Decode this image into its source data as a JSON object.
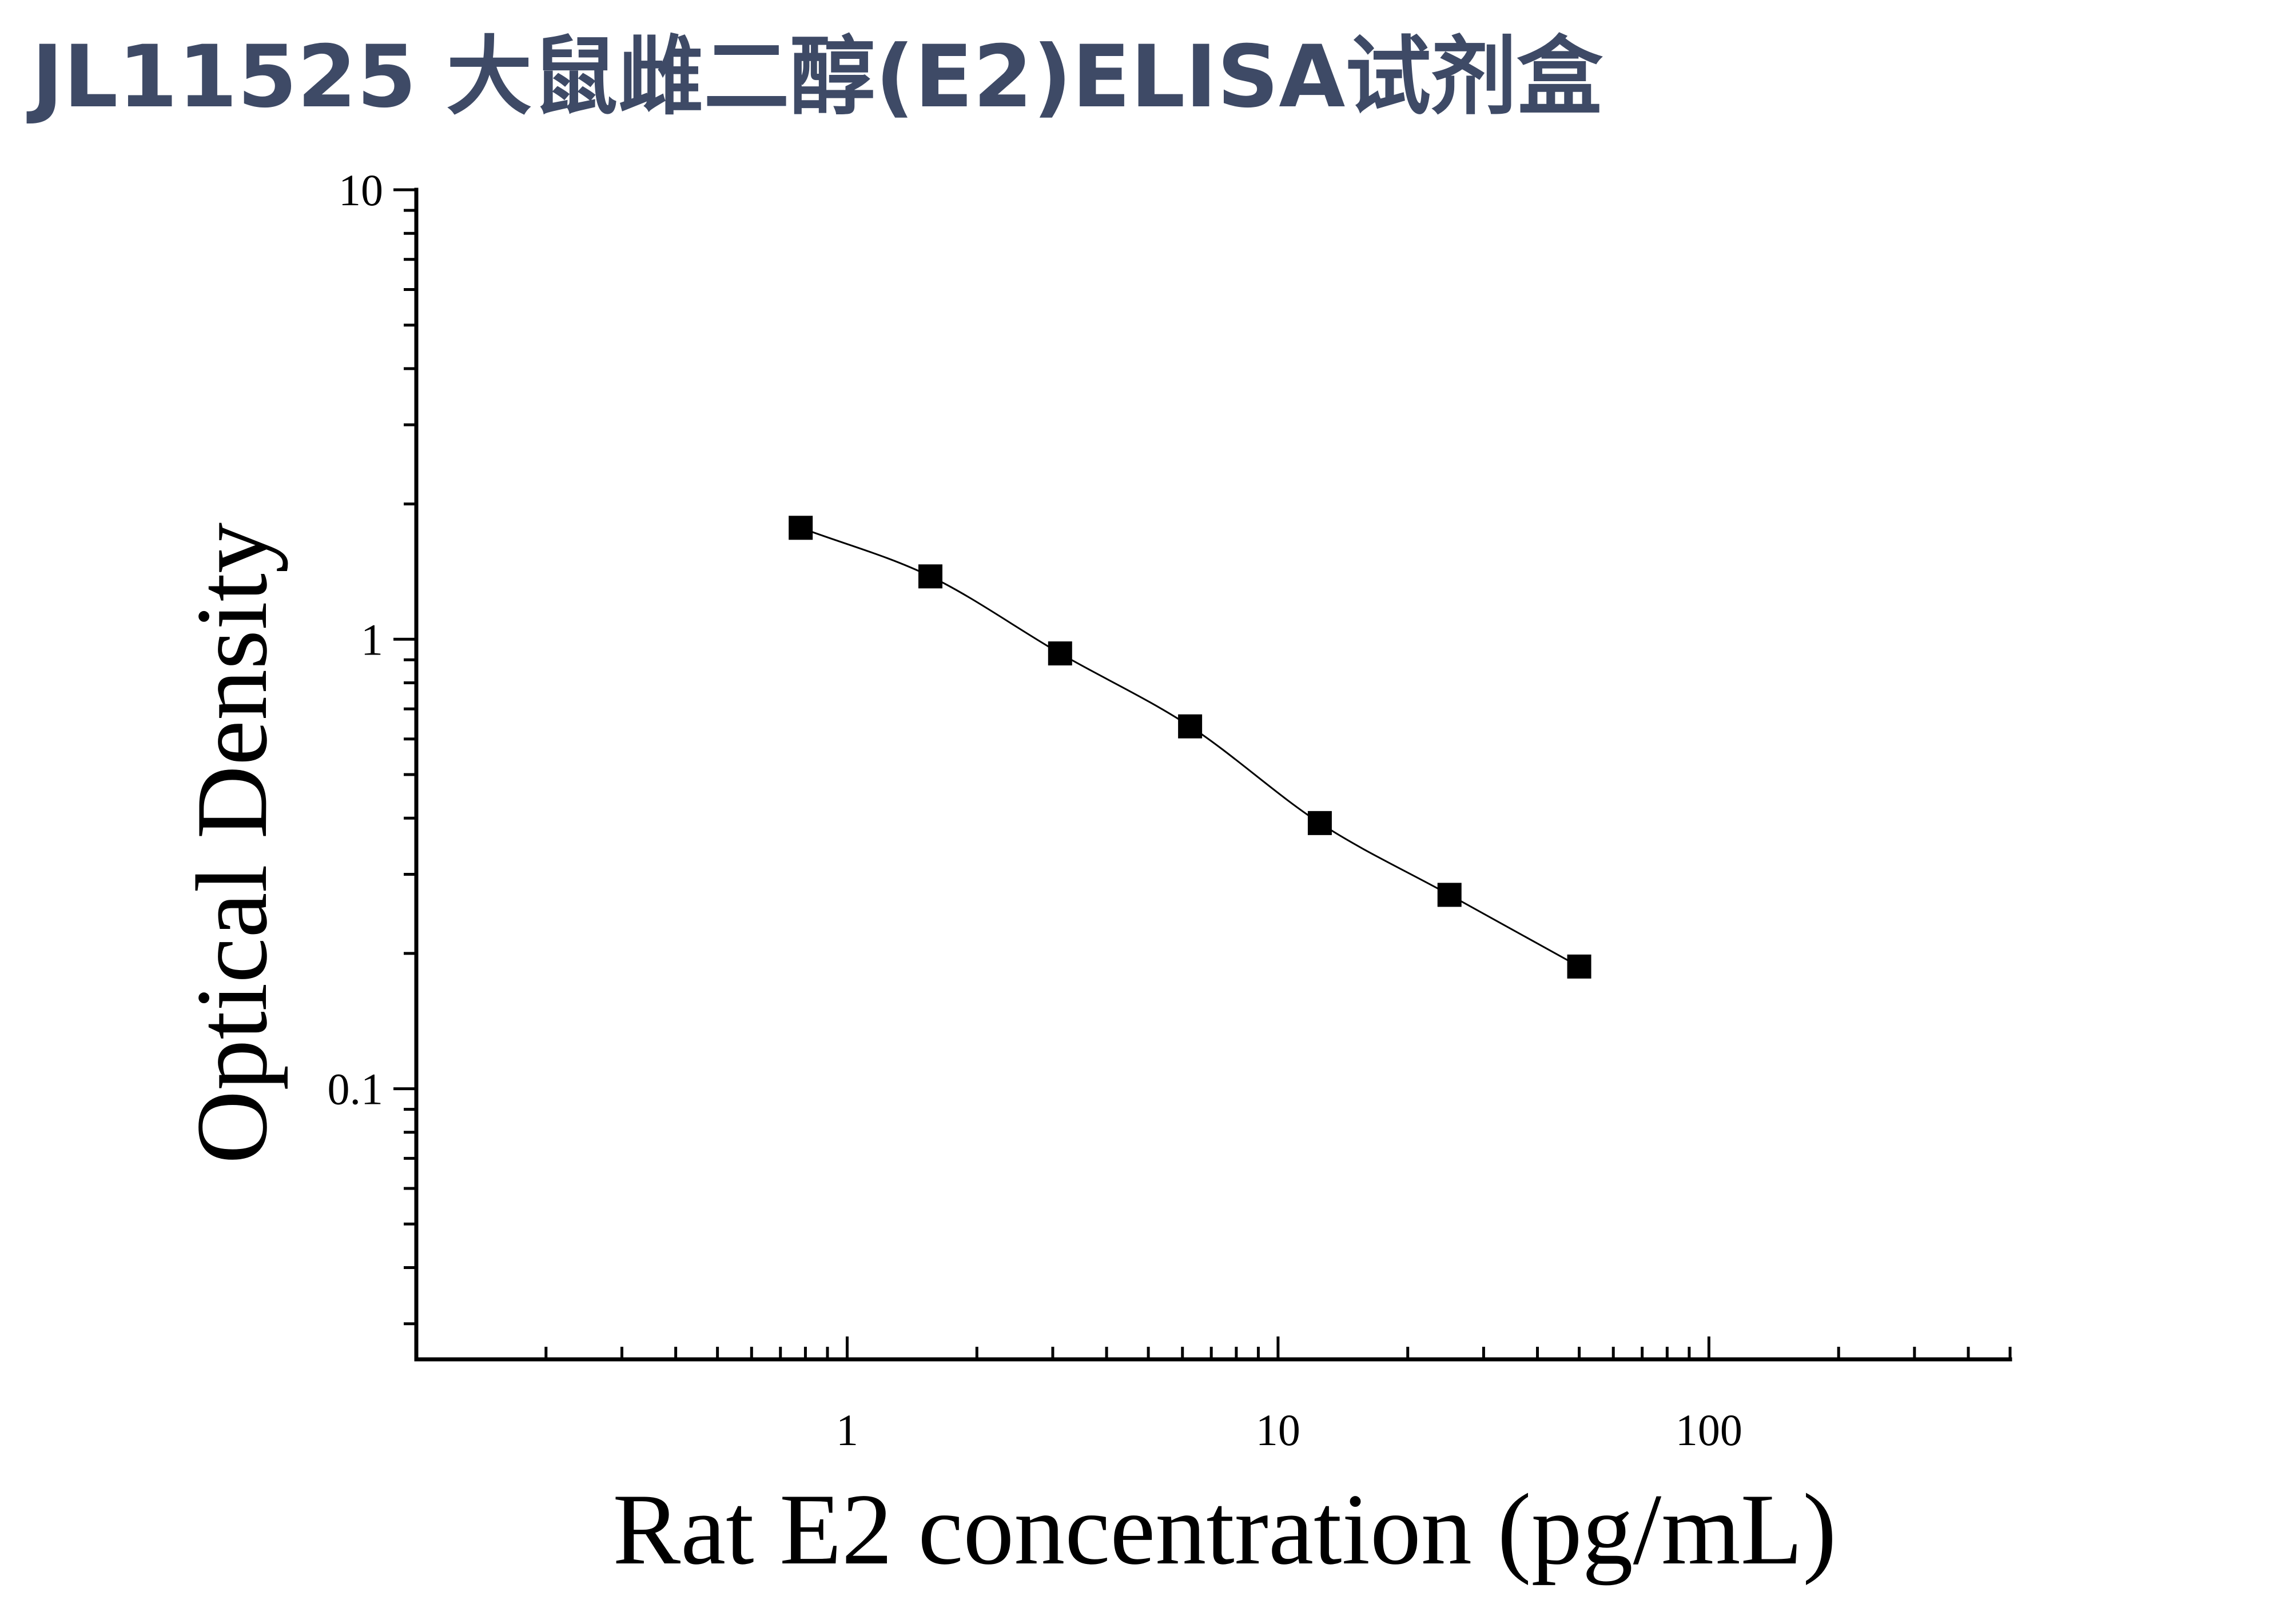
{
  "header": {
    "title": "JL11525 大鼠雌二醇(E2)ELISA试剂盒"
  },
  "colors": {
    "title": "#3e4a66",
    "axis": "#000000",
    "marker": "#000000",
    "curve": "#000000"
  },
  "chart_data": {
    "type": "scatter",
    "xscale": "log",
    "yscale": "log",
    "xlabel": "Rat E2 concentration (pg/mL)",
    "ylabel": "Optical Density",
    "xlim": [
      0.1,
      500
    ],
    "ylim": [
      0.025,
      10
    ],
    "xticks": [
      {
        "value": 1,
        "label": "1"
      },
      {
        "value": 10,
        "label": "10"
      },
      {
        "value": 100,
        "label": "100"
      }
    ],
    "yticks": [
      {
        "value": 0.1,
        "label": "0.1"
      },
      {
        "value": 1,
        "label": "1"
      },
      {
        "value": 10,
        "label": "10"
      }
    ],
    "grid": false,
    "legend": "none",
    "marker": "square",
    "series": [
      {
        "x": [
          0.78,
          1.56,
          3.12,
          6.25,
          12.5,
          25,
          50
        ],
        "y": [
          1.77,
          1.38,
          0.93,
          0.64,
          0.39,
          0.27,
          0.187
        ],
        "fit": "4PL"
      }
    ]
  }
}
